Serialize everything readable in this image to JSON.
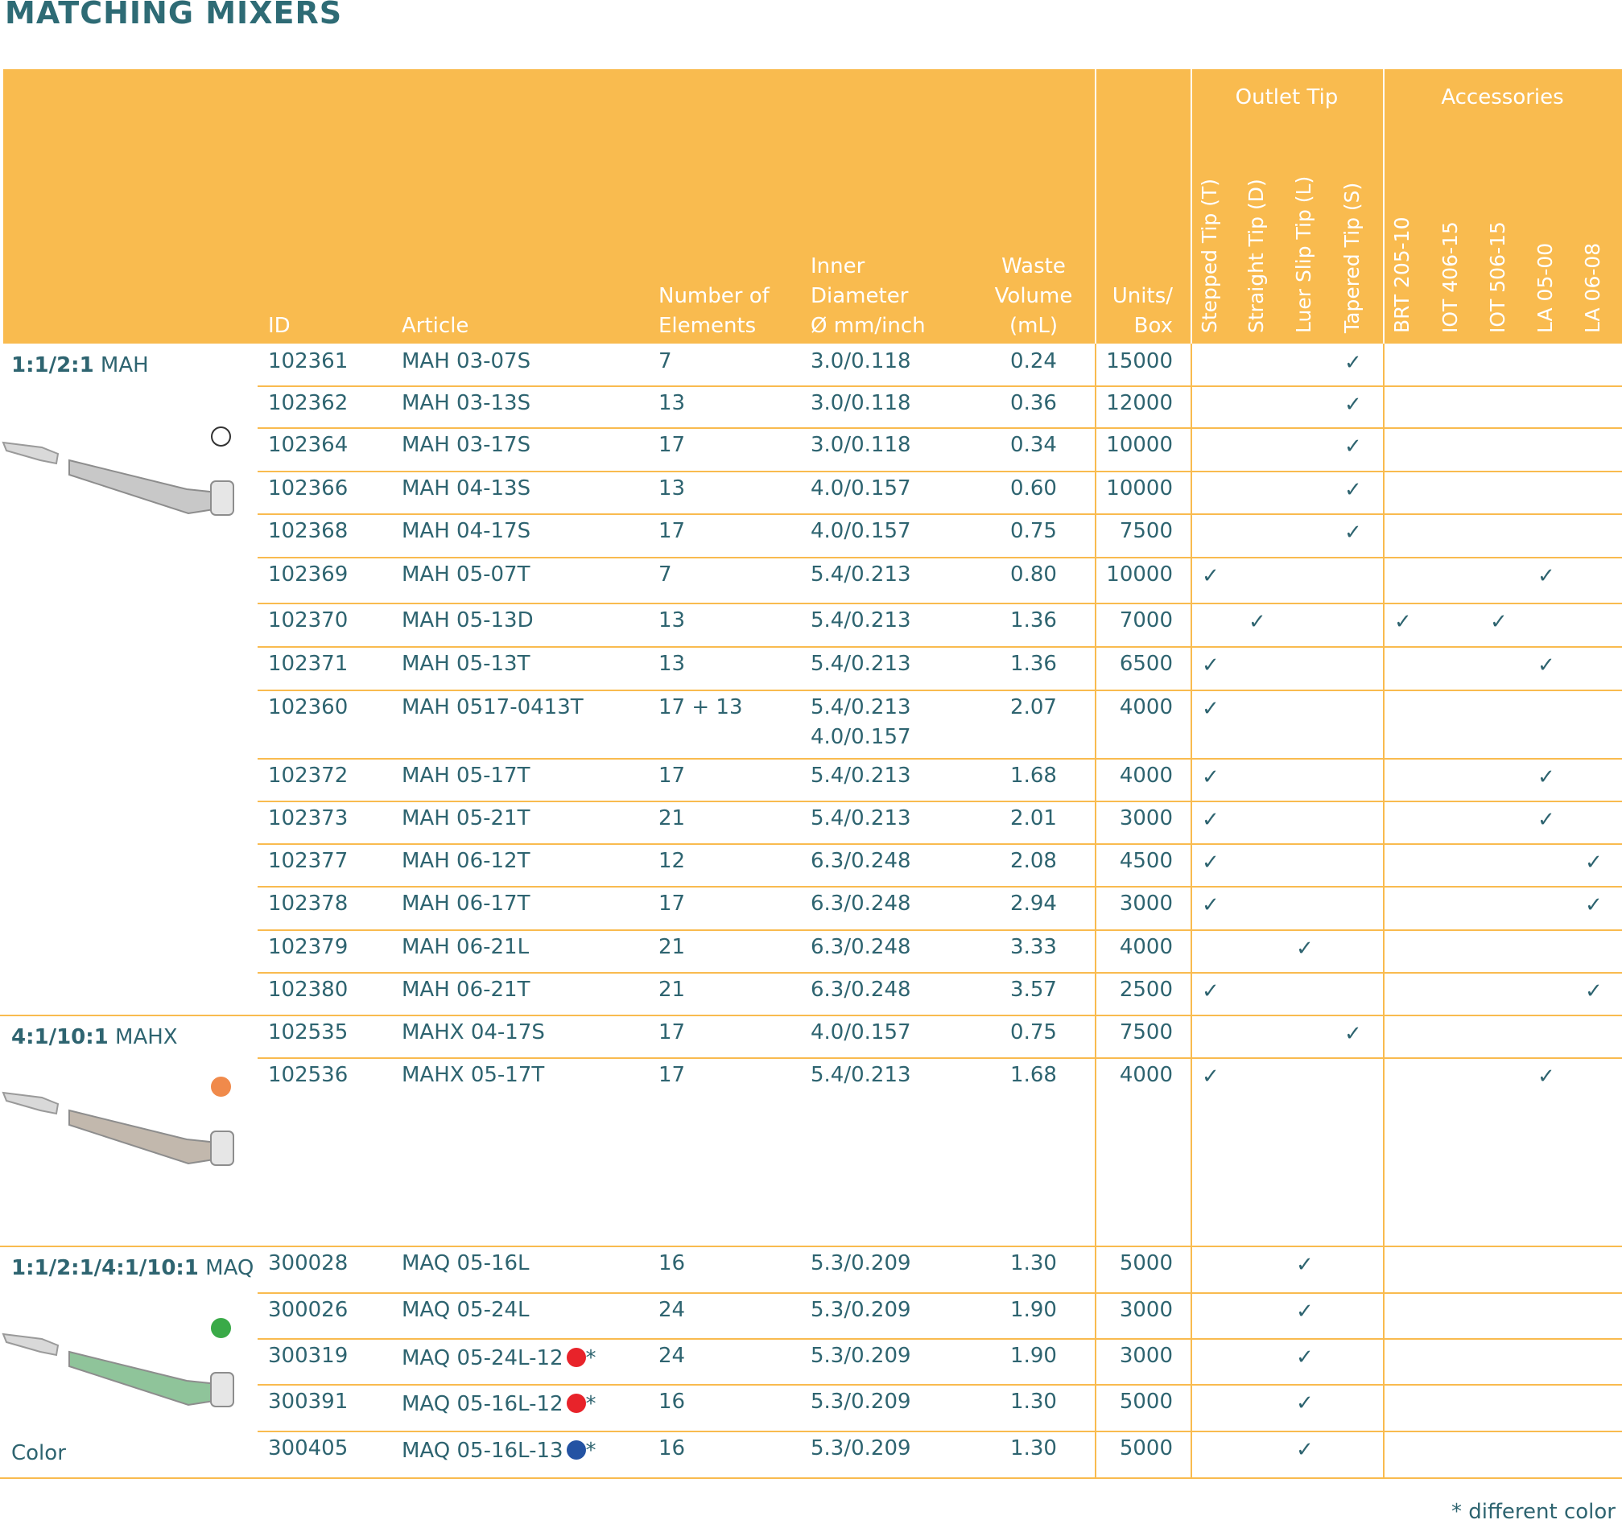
{
  "page_title": "MATCHING MIXERS",
  "headers": {
    "id": "ID",
    "article": "Article",
    "elements": [
      "Number of",
      "Elements"
    ],
    "inner_diameter": [
      "Inner",
      "Diameter",
      "Ø mm/inch"
    ],
    "waste": [
      "Waste",
      "Volume",
      "(mL)"
    ],
    "units": [
      "Units/",
      "Box"
    ],
    "outlet_tip_group": "Outlet Tip",
    "outlet_tips": [
      "Stepped Tip (T)",
      "Straight Tip (D)",
      "Luer Slip Tip (L)",
      "Tapered Tip (S)"
    ],
    "accessories_group": "Accessories",
    "accessories": [
      "BRT 205-10",
      "IOT 406-15",
      "IOT 506-15",
      "LA 05-00",
      "LA 06-08"
    ]
  },
  "groups": [
    {
      "ratio": "1:1/2:1",
      "name": "MAH",
      "dot_color": "#ffffff",
      "dot_border": "#333333",
      "mixer_color": "#c8c8c8",
      "extra_label": ""
    },
    {
      "ratio": "4:1/10:1",
      "name": "MAHX",
      "dot_color": "#f08a4b",
      "dot_border": "#f08a4b",
      "mixer_color": "#c2b8ad",
      "extra_label": ""
    },
    {
      "ratio": "1:1/2:1/4:1/10:1",
      "name": "MAQ",
      "dot_color": "#3aaa48",
      "dot_border": "#3aaa48",
      "mixer_color": "#8fc49a",
      "extra_label": "Color"
    }
  ],
  "rows": [
    {
      "id": "102361",
      "article": "MAH 03-07S",
      "elements": "7",
      "diameter": [
        "3.0/0.118"
      ],
      "waste": "0.24",
      "units": "15000",
      "tips": [
        0,
        0,
        0,
        1
      ],
      "acc": [
        0,
        0,
        0,
        0,
        0
      ]
    },
    {
      "id": "102362",
      "article": "MAH 03-13S",
      "elements": "13",
      "diameter": [
        "3.0/0.118"
      ],
      "waste": "0.36",
      "units": "12000",
      "tips": [
        0,
        0,
        0,
        1
      ],
      "acc": [
        0,
        0,
        0,
        0,
        0
      ]
    },
    {
      "id": "102364",
      "article": "MAH 03-17S",
      "elements": "17",
      "diameter": [
        "3.0/0.118"
      ],
      "waste": "0.34",
      "units": "10000",
      "tips": [
        0,
        0,
        0,
        1
      ],
      "acc": [
        0,
        0,
        0,
        0,
        0
      ]
    },
    {
      "id": "102366",
      "article": "MAH 04-13S",
      "elements": "13",
      "diameter": [
        "4.0/0.157"
      ],
      "waste": "0.60",
      "units": "10000",
      "tips": [
        0,
        0,
        0,
        1
      ],
      "acc": [
        0,
        0,
        0,
        0,
        0
      ]
    },
    {
      "id": "102368",
      "article": "MAH 04-17S",
      "elements": "17",
      "diameter": [
        "4.0/0.157"
      ],
      "waste": "0.75",
      "units": "7500",
      "tips": [
        0,
        0,
        0,
        1
      ],
      "acc": [
        0,
        0,
        0,
        0,
        0
      ]
    },
    {
      "id": "102369",
      "article": "MAH 05-07T",
      "elements": "7",
      "diameter": [
        "5.4/0.213"
      ],
      "waste": "0.80",
      "units": "10000",
      "tips": [
        1,
        0,
        0,
        0
      ],
      "acc": [
        0,
        0,
        0,
        1,
        0
      ]
    },
    {
      "id": "102370",
      "article": "MAH 05-13D",
      "elements": "13",
      "diameter": [
        "5.4/0.213"
      ],
      "waste": "1.36",
      "units": "7000",
      "tips": [
        0,
        1,
        0,
        0
      ],
      "acc": [
        1,
        0,
        1,
        0,
        0
      ]
    },
    {
      "id": "102371",
      "article": "MAH 05-13T",
      "elements": "13",
      "diameter": [
        "5.4/0.213"
      ],
      "waste": "1.36",
      "units": "6500",
      "tips": [
        1,
        0,
        0,
        0
      ],
      "acc": [
        0,
        0,
        0,
        1,
        0
      ]
    },
    {
      "id": "102360",
      "article": "MAH 0517-0413T",
      "elements": "17 + 13",
      "diameter": [
        "5.4/0.213",
        "4.0/0.157"
      ],
      "waste": "2.07",
      "units": "4000",
      "tips": [
        1,
        0,
        0,
        0
      ],
      "acc": [
        0,
        0,
        0,
        0,
        0
      ]
    },
    {
      "id": "102372",
      "article": "MAH 05-17T",
      "elements": "17",
      "diameter": [
        "5.4/0.213"
      ],
      "waste": "1.68",
      "units": "4000",
      "tips": [
        1,
        0,
        0,
        0
      ],
      "acc": [
        0,
        0,
        0,
        1,
        0
      ]
    },
    {
      "id": "102373",
      "article": "MAH 05-21T",
      "elements": "21",
      "diameter": [
        "5.4/0.213"
      ],
      "waste": "2.01",
      "units": "3000",
      "tips": [
        1,
        0,
        0,
        0
      ],
      "acc": [
        0,
        0,
        0,
        1,
        0
      ]
    },
    {
      "id": "102377",
      "article": "MAH 06-12T",
      "elements": "12",
      "diameter": [
        "6.3/0.248"
      ],
      "waste": "2.08",
      "units": "4500",
      "tips": [
        1,
        0,
        0,
        0
      ],
      "acc": [
        0,
        0,
        0,
        0,
        1
      ]
    },
    {
      "id": "102378",
      "article": "MAH 06-17T",
      "elements": "17",
      "diameter": [
        "6.3/0.248"
      ],
      "waste": "2.94",
      "units": "3000",
      "tips": [
        1,
        0,
        0,
        0
      ],
      "acc": [
        0,
        0,
        0,
        0,
        1
      ]
    },
    {
      "id": "102379",
      "article": "MAH 06-21L",
      "elements": "21",
      "diameter": [
        "6.3/0.248"
      ],
      "waste": "3.33",
      "units": "4000",
      "tips": [
        0,
        0,
        1,
        0
      ],
      "acc": [
        0,
        0,
        0,
        0,
        0
      ]
    },
    {
      "id": "102380",
      "article": "MAH 06-21T",
      "elements": "21",
      "diameter": [
        "6.3/0.248"
      ],
      "waste": "3.57",
      "units": "2500",
      "tips": [
        1,
        0,
        0,
        0
      ],
      "acc": [
        0,
        0,
        0,
        0,
        1
      ]
    },
    {
      "id": "102535",
      "article": "MAHX 04-17S",
      "elements": "17",
      "diameter": [
        "4.0/0.157"
      ],
      "waste": "0.75",
      "units": "7500",
      "tips": [
        0,
        0,
        0,
        1
      ],
      "acc": [
        0,
        0,
        0,
        0,
        0
      ]
    },
    {
      "id": "102536",
      "article": "MAHX 05-17T",
      "elements": "17",
      "diameter": [
        "5.4/0.213"
      ],
      "waste": "1.68",
      "units": "4000",
      "tips": [
        1,
        0,
        0,
        0
      ],
      "acc": [
        0,
        0,
        0,
        1,
        0
      ]
    },
    {
      "id": "300028",
      "article": "MAQ 05-16L",
      "elements": "16",
      "diameter": [
        "5.3/0.209"
      ],
      "waste": "1.30",
      "units": "5000",
      "tips": [
        0,
        0,
        1,
        0
      ],
      "acc": [
        0,
        0,
        0,
        0,
        0
      ]
    },
    {
      "id": "300026",
      "article": "MAQ 05-24L",
      "elements": "24",
      "diameter": [
        "5.3/0.209"
      ],
      "waste": "1.90",
      "units": "3000",
      "tips": [
        0,
        0,
        1,
        0
      ],
      "acc": [
        0,
        0,
        0,
        0,
        0
      ]
    },
    {
      "id": "300319",
      "article": "MAQ 05-24L-12",
      "color_dot": "#e8232a",
      "color_mark": "*",
      "elements": "24",
      "diameter": [
        "5.3/0.209"
      ],
      "waste": "1.90",
      "units": "3000",
      "tips": [
        0,
        0,
        1,
        0
      ],
      "acc": [
        0,
        0,
        0,
        0,
        0
      ]
    },
    {
      "id": "300391",
      "article": "MAQ 05-16L-12",
      "color_dot": "#e8232a",
      "color_mark": "*",
      "elements": "16",
      "diameter": [
        "5.3/0.209"
      ],
      "waste": "1.30",
      "units": "5000",
      "tips": [
        0,
        0,
        1,
        0
      ],
      "acc": [
        0,
        0,
        0,
        0,
        0
      ]
    },
    {
      "id": "300405",
      "article": "MAQ 05-16L-13",
      "color_dot": "#2453a3",
      "color_mark": "*",
      "elements": "16",
      "diameter": [
        "5.3/0.209"
      ],
      "waste": "1.30",
      "units": "5000",
      "tips": [
        0,
        0,
        1,
        0
      ],
      "acc": [
        0,
        0,
        0,
        0,
        0
      ]
    }
  ],
  "check_symbol": "✓",
  "footnote": "* different color",
  "colors": {
    "header": "#f9bb4f",
    "text": "#2e6470",
    "title": "#2e6b75"
  }
}
